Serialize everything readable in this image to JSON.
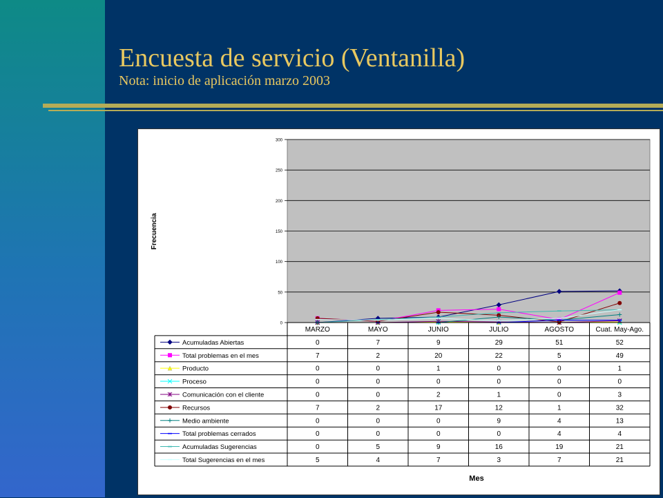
{
  "slide": {
    "title": "Encuesta de servicio (Ventanilla)",
    "subtitle": "Nota: inicio de aplicación marzo 2003",
    "colors": {
      "title": "#e8c860",
      "background": "#003366",
      "rule": "#b5ac57"
    }
  },
  "chart_data": {
    "type": "line",
    "title": "",
    "xlabel": "Mes",
    "ylabel": "Frecuencia",
    "ylim": [
      0,
      300
    ],
    "yticks": [
      0,
      50,
      100,
      150,
      200,
      250,
      300
    ],
    "grid": true,
    "plot_background": "#c0c0c0",
    "legend": "data-table",
    "categories": [
      "MARZO",
      "MAYO",
      "JUNIO",
      "JULIO",
      "AGOSTO",
      "Cuat. May-Ago."
    ],
    "series": [
      {
        "name": "Acumuladas Abiertas",
        "color": "#000080",
        "marker": "diamond",
        "values": [
          0,
          7,
          9,
          29,
          51,
          52
        ]
      },
      {
        "name": "Total  problemas en el mes",
        "color": "#ff00ff",
        "marker": "square",
        "values": [
          7,
          2,
          20,
          22,
          5,
          49
        ]
      },
      {
        "name": "Producto",
        "color": "#ffff00",
        "marker": "triangle",
        "values": [
          0,
          0,
          1,
          0,
          0,
          1
        ]
      },
      {
        "name": "Proceso",
        "color": "#00ffff",
        "marker": "x",
        "values": [
          0,
          0,
          0,
          0,
          0,
          0
        ]
      },
      {
        "name": "Comunicación con el cliente",
        "color": "#800080",
        "marker": "star",
        "values": [
          0,
          0,
          2,
          1,
          0,
          3
        ]
      },
      {
        "name": "Recursos",
        "color": "#800000",
        "marker": "circle",
        "values": [
          7,
          2,
          17,
          12,
          1,
          32
        ]
      },
      {
        "name": "Medio ambiente",
        "color": "#008080",
        "marker": "plus",
        "values": [
          0,
          0,
          0,
          9,
          4,
          13
        ]
      },
      {
        "name": "Total problemas cerrados",
        "color": "#0000ff",
        "marker": "dash",
        "values": [
          0,
          0,
          0,
          0,
          4,
          4
        ]
      },
      {
        "name": "Acumuladas Sugerencias",
        "color": "#3cb8b0",
        "marker": "dash",
        "values": [
          0,
          5,
          9,
          16,
          19,
          21
        ]
      },
      {
        "name": "Total Sugerencias en el mes",
        "color": "#ccffff",
        "marker": "dash",
        "values": [
          5,
          4,
          7,
          3,
          7,
          21
        ]
      }
    ]
  }
}
